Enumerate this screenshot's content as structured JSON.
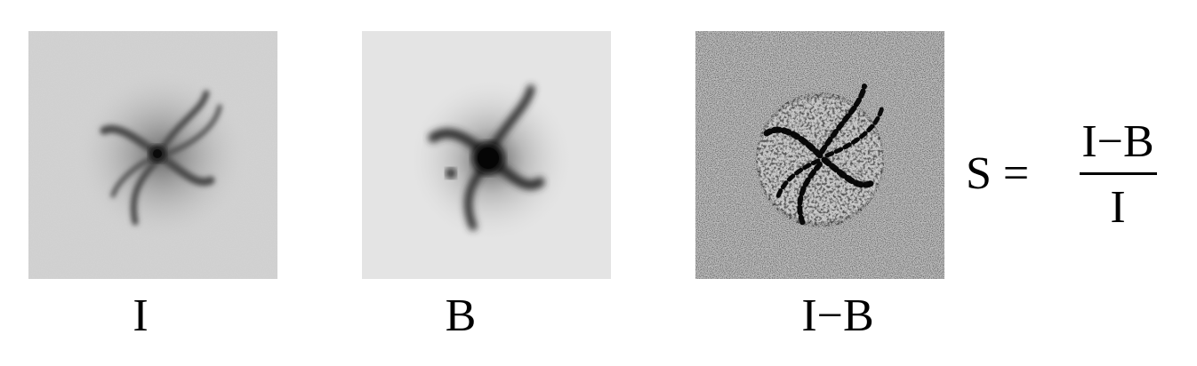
{
  "panels": [
    {
      "id": "I",
      "caption": "I",
      "kind": "galaxy-image-I-band"
    },
    {
      "id": "B",
      "caption": "B",
      "kind": "galaxy-image-B-band"
    },
    {
      "id": "I-B",
      "caption": "I−B",
      "kind": "galaxy-difference-image"
    }
  ],
  "formula": {
    "lhs": "S =",
    "numerator": "I−B",
    "denominator": "I"
  },
  "colors": {
    "background": "#ffffff",
    "text": "#000000",
    "panel_i_bg": "#d6d6d6",
    "panel_b_bg": "#e6e6e6",
    "panel_ib_bg": "#9a9a9a"
  }
}
